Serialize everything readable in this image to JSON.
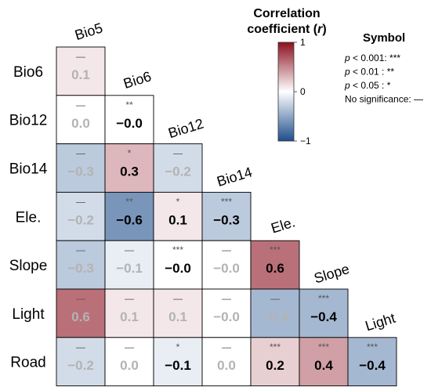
{
  "chart_data": {
    "type": "heatmap",
    "variables": [
      "Bio5",
      "Bio6",
      "Bio12",
      "Bio14",
      "Ele.",
      "Slope",
      "Light",
      "Road"
    ],
    "rows": [
      "Bio6",
      "Bio12",
      "Bio14",
      "Ele.",
      "Slope",
      "Light",
      "Road"
    ],
    "columns": [
      "Bio5",
      "Bio6",
      "Bio12",
      "Bio14",
      "Ele.",
      "Slope",
      "Light"
    ],
    "cells": [
      {
        "row": "Bio6",
        "col": "Bio5",
        "value": 0.1,
        "label": "0.1",
        "sig": "—",
        "significant": false
      },
      {
        "row": "Bio12",
        "col": "Bio5",
        "value": 0.0,
        "label": "0.0",
        "sig": "—",
        "significant": false
      },
      {
        "row": "Bio12",
        "col": "Bio6",
        "value": -0.0,
        "label": "−0.0",
        "sig": "**",
        "significant": true
      },
      {
        "row": "Bio14",
        "col": "Bio5",
        "value": -0.3,
        "label": "−0.3",
        "sig": "—",
        "significant": false
      },
      {
        "row": "Bio14",
        "col": "Bio6",
        "value": 0.3,
        "label": "0.3",
        "sig": "*",
        "significant": true
      },
      {
        "row": "Bio14",
        "col": "Bio12",
        "value": -0.2,
        "label": "−0.2",
        "sig": "—",
        "significant": false
      },
      {
        "row": "Ele.",
        "col": "Bio5",
        "value": -0.2,
        "label": "−0.2",
        "sig": "—",
        "significant": false
      },
      {
        "row": "Ele.",
        "col": "Bio6",
        "value": -0.6,
        "label": "−0.6",
        "sig": "**",
        "significant": true
      },
      {
        "row": "Ele.",
        "col": "Bio12",
        "value": 0.1,
        "label": "0.1",
        "sig": "*",
        "significant": true
      },
      {
        "row": "Ele.",
        "col": "Bio14",
        "value": -0.3,
        "label": "−0.3",
        "sig": "***",
        "significant": true
      },
      {
        "row": "Slope",
        "col": "Bio5",
        "value": -0.3,
        "label": "−0.3",
        "sig": "—",
        "significant": false
      },
      {
        "row": "Slope",
        "col": "Bio6",
        "value": -0.1,
        "label": "−0.1",
        "sig": "—",
        "significant": false
      },
      {
        "row": "Slope",
        "col": "Bio12",
        "value": -0.0,
        "label": "−0.0",
        "sig": "***",
        "significant": true
      },
      {
        "row": "Slope",
        "col": "Bio14",
        "value": -0.0,
        "label": "−0.0",
        "sig": "—",
        "significant": false
      },
      {
        "row": "Slope",
        "col": "Ele.",
        "value": 0.6,
        "label": "0.6",
        "sig": "***",
        "significant": true
      },
      {
        "row": "Light",
        "col": "Bio5",
        "value": 0.6,
        "label": "0.6",
        "sig": "—",
        "significant": false
      },
      {
        "row": "Light",
        "col": "Bio6",
        "value": 0.1,
        "label": "0.1",
        "sig": "—",
        "significant": false
      },
      {
        "row": "Light",
        "col": "Bio12",
        "value": 0.1,
        "label": "0.1",
        "sig": "—",
        "significant": false
      },
      {
        "row": "Light",
        "col": "Bio14",
        "value": -0.0,
        "label": "−0.0",
        "sig": "—",
        "significant": false
      },
      {
        "row": "Light",
        "col": "Ele.",
        "value": -0.4,
        "label": "−0.4",
        "sig": "—",
        "significant": false
      },
      {
        "row": "Light",
        "col": "Slope",
        "value": -0.4,
        "label": "−0.4",
        "sig": "***",
        "significant": true
      },
      {
        "row": "Road",
        "col": "Bio5",
        "value": -0.2,
        "label": "−0.2",
        "sig": "—",
        "significant": false
      },
      {
        "row": "Road",
        "col": "Bio6",
        "value": 0.0,
        "label": "0.0",
        "sig": "—",
        "significant": false
      },
      {
        "row": "Road",
        "col": "Bio12",
        "value": -0.1,
        "label": "−0.1",
        "sig": "*",
        "significant": true
      },
      {
        "row": "Road",
        "col": "Bio14",
        "value": 0.0,
        "label": "0.0",
        "sig": "—",
        "significant": false
      },
      {
        "row": "Road",
        "col": "Ele.",
        "value": 0.2,
        "label": "0.2",
        "sig": "***",
        "significant": true
      },
      {
        "row": "Road",
        "col": "Slope",
        "value": 0.4,
        "label": "0.4",
        "sig": "***",
        "significant": true
      },
      {
        "row": "Road",
        "col": "Light",
        "value": -0.4,
        "label": "−0.4",
        "sig": "***",
        "significant": true
      }
    ],
    "colorbar": {
      "title_line1": "Correlation",
      "title_line2": "coefficient (",
      "title_var": "r",
      "title_close": ")",
      "ticks": [
        {
          "value": 1,
          "label": "1"
        },
        {
          "value": 0,
          "label": "0"
        },
        {
          "value": -1,
          "label": "−1"
        }
      ],
      "range": [
        -1,
        1
      ],
      "colors": {
        "neg": "#1f4e8c",
        "mid": "#ffffff",
        "pos": "#8c1020"
      }
    },
    "legend": {
      "title": "Symbol",
      "items": [
        {
          "p": "p",
          "text": " < 0.001: ***"
        },
        {
          "p": "p",
          "text": " < 0.01  : **"
        },
        {
          "p": "p",
          "text": " < 0.05  : *"
        },
        {
          "p": "",
          "text": "No significance: —"
        }
      ]
    },
    "colors": {
      "significant_text": "#000000",
      "nonsignificant_text": "#b3b3b3",
      "sig_symbol": "#555555",
      "cell_border": "#000000"
    }
  }
}
